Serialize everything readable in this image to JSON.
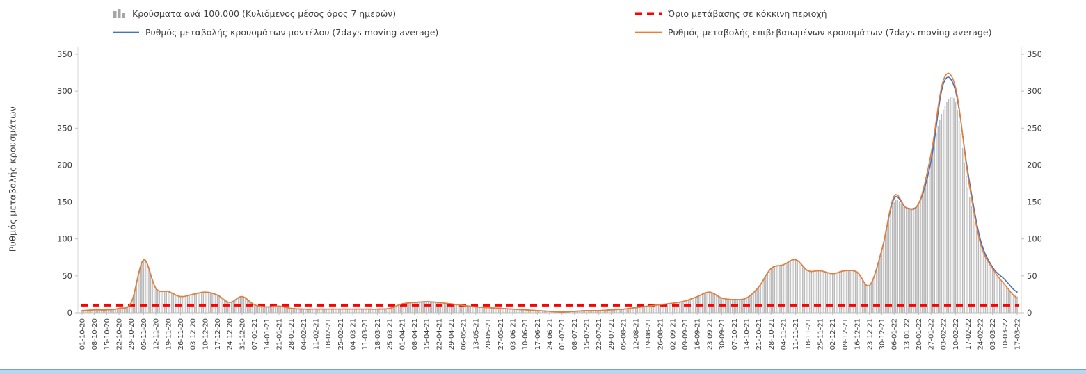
{
  "chart_data": {
    "type": "combo",
    "title": "",
    "ylabel": "Ρυθμός μεταβολής κρουσμάτων",
    "ylim": [
      0,
      350
    ],
    "ytick_step": 50,
    "grid": false,
    "legend_position": "top",
    "threshold_value": 10,
    "categories": [
      "01-10-20",
      "08-10-20",
      "15-10-20",
      "22-10-20",
      "29-10-20",
      "05-11-20",
      "12-11-20",
      "19-11-20",
      "26-11-20",
      "03-12-20",
      "10-12-20",
      "17-12-20",
      "24-12-20",
      "31-12-20",
      "07-01-21",
      "14-01-21",
      "21-01-21",
      "28-01-21",
      "04-02-21",
      "11-02-21",
      "18-02-21",
      "25-02-21",
      "04-03-21",
      "11-03-21",
      "18-03-21",
      "25-03-21",
      "01-04-21",
      "08-04-21",
      "15-04-21",
      "22-04-21",
      "29-04-21",
      "06-05-21",
      "13-05-21",
      "20-05-21",
      "27-05-21",
      "03-06-21",
      "10-06-21",
      "17-06-21",
      "24-06-21",
      "01-07-21",
      "08-07-21",
      "15-07-21",
      "22-07-21",
      "29-07-21",
      "05-08-21",
      "12-08-21",
      "19-08-21",
      "26-08-21",
      "02-09-21",
      "09-09-21",
      "16-09-21",
      "23-09-21",
      "30-09-21",
      "07-10-21",
      "14-10-21",
      "21-10-21",
      "28-10-21",
      "04-11-21",
      "11-11-21",
      "18-11-21",
      "25-11-21",
      "02-12-21",
      "09-12-21",
      "16-12-21",
      "23-12-21",
      "30-12-21",
      "06-01-22",
      "13-01-22",
      "20-01-22",
      "27-01-22",
      "03-02-22",
      "10-02-22",
      "17-02-22",
      "24-02-22",
      "03-03-22",
      "10-03-22",
      "17-03-22"
    ],
    "series": [
      {
        "name": "Κρούσματα ανά 100.000 (Κυλιόμενος μέσος όρος 7 ημερών)",
        "type": "bar",
        "color": "#b9b9b9",
        "values": [
          3,
          4,
          4,
          6,
          14,
          72,
          33,
          29,
          22,
          25,
          28,
          24,
          14,
          22,
          11,
          8,
          9,
          6,
          5,
          5,
          5,
          5,
          5,
          5,
          5,
          6,
          12,
          14,
          15,
          14,
          12,
          10,
          8,
          7,
          6,
          5,
          4,
          3,
          2,
          1,
          2,
          3,
          3,
          4,
          5,
          7,
          9,
          11,
          13,
          16,
          22,
          28,
          20,
          18,
          20,
          35,
          60,
          65,
          72,
          57,
          57,
          53,
          57,
          55,
          37,
          85,
          150,
          142,
          148,
          215,
          275,
          285,
          170,
          95,
          60,
          38,
          22
        ]
      },
      {
        "name": "Όριο μετάβασης σε κόκκινη περιοχή",
        "type": "threshold-line",
        "color": "#ff0000",
        "value": 10
      },
      {
        "name": "Ρυθμός μεταβολής κρουσμάτων μοντέλου (7days moving average)",
        "type": "line",
        "color": "#4472c4",
        "values": [
          3,
          4,
          4,
          6,
          14,
          72,
          33,
          29,
          22,
          25,
          28,
          24,
          14,
          22,
          11,
          8,
          9,
          6,
          5,
          5,
          5,
          5,
          5,
          5,
          5,
          6,
          12,
          14,
          15,
          14,
          12,
          10,
          8,
          7,
          6,
          5,
          4,
          3,
          2,
          1,
          2,
          3,
          3,
          4,
          5,
          7,
          9,
          11,
          13,
          16,
          22,
          28,
          20,
          18,
          20,
          35,
          60,
          65,
          72,
          57,
          57,
          53,
          57,
          55,
          37,
          85,
          155,
          142,
          148,
          205,
          310,
          300,
          190,
          100,
          62,
          45,
          28
        ]
      },
      {
        "name": "Ρυθμός μεταβολής επιβεβαιωμένων κρουσμάτων (7days moving average)",
        "type": "line",
        "color": "#ed7d31",
        "values": [
          3,
          4,
          4,
          6,
          14,
          72,
          33,
          29,
          22,
          25,
          28,
          24,
          14,
          22,
          11,
          8,
          9,
          6,
          5,
          5,
          5,
          5,
          5,
          5,
          5,
          6,
          12,
          14,
          15,
          14,
          12,
          10,
          8,
          7,
          6,
          5,
          4,
          3,
          2,
          1,
          2,
          3,
          3,
          4,
          5,
          7,
          9,
          11,
          13,
          16,
          22,
          28,
          20,
          18,
          20,
          35,
          60,
          65,
          72,
          57,
          57,
          53,
          57,
          55,
          37,
          85,
          158,
          142,
          148,
          215,
          315,
          305,
          185,
          95,
          60,
          38,
          20
        ]
      }
    ]
  }
}
